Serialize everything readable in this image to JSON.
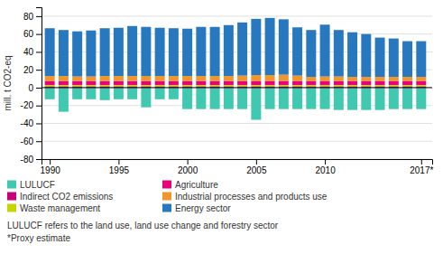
{
  "chart_data": {
    "type": "bar",
    "stacked": true,
    "ylabel": "mill. t CO2-eq",
    "x": [
      1990,
      1991,
      1992,
      1993,
      1994,
      1995,
      1996,
      1997,
      1998,
      1999,
      2000,
      2001,
      2002,
      2003,
      2004,
      2005,
      2006,
      2007,
      2008,
      2009,
      2010,
      2011,
      2012,
      2013,
      2014,
      2015,
      2016,
      2017
    ],
    "xlim": [
      1989.4,
      2017.8
    ],
    "xticks": [
      1990,
      1995,
      2000,
      2005,
      2010,
      {
        "value": 2017,
        "label": "2017*"
      }
    ],
    "ylim": [
      -80,
      90
    ],
    "yticks": [
      -80,
      -60,
      -40,
      -20,
      0,
      20,
      40,
      60,
      80
    ],
    "grid": true,
    "legend": "bottom",
    "series": [
      {
        "name": "LULUCF",
        "color": "#40c8b0",
        "values": [
          -13.0,
          -27.0,
          -13.0,
          -13.0,
          -14.0,
          -13.0,
          -13.0,
          -22.0,
          -13.0,
          -13.0,
          -24.0,
          -24.0,
          -24.0,
          -24.0,
          -24.0,
          -36.0,
          -24.0,
          -24.0,
          -24.0,
          -24.0,
          -24.0,
          -25.0,
          -25.0,
          -25.0,
          -25.0,
          -24.0,
          -24.0,
          -24.0
        ]
      },
      {
        "name": "Indirect CO2 emissions",
        "color": "#c8007a",
        "values": [
          1.5,
          1.5,
          1.5,
          1.5,
          1.5,
          1.5,
          1.5,
          1.5,
          1.5,
          1.5,
          1.5,
          1.5,
          1.5,
          1.5,
          1.5,
          1.5,
          1.5,
          1.5,
          1.5,
          1.5,
          1.5,
          1.5,
          1.5,
          1.5,
          1.5,
          1.5,
          1.5,
          1.5
        ]
      },
      {
        "name": "Waste management",
        "color": "#c8d400",
        "values": [
          1.5,
          1.5,
          1.5,
          1.5,
          1.5,
          1.5,
          1.5,
          1.5,
          1.5,
          1.5,
          1.5,
          1.5,
          1.5,
          1.5,
          1.5,
          1.5,
          1.5,
          1.5,
          1.5,
          1.5,
          1.5,
          1.5,
          1.5,
          1.5,
          1.5,
          1.5,
          1.5,
          1.5
        ]
      },
      {
        "name": "Agriculture",
        "color": "#e8007a",
        "values": [
          4.5,
          4.5,
          4.5,
          4.5,
          4.5,
          4.5,
          4.5,
          4.5,
          4.5,
          4.5,
          4.5,
          4.5,
          4.5,
          4.5,
          4.5,
          4.5,
          4.5,
          4.5,
          4.5,
          4.5,
          4.5,
          4.5,
          4.5,
          4.5,
          4.5,
          4.5,
          4.5,
          4.5
        ]
      },
      {
        "name": "Industrial processes and products use",
        "color": "#f0962a",
        "values": [
          5.5,
          5.5,
          5.0,
          5.0,
          5.5,
          5.5,
          5.5,
          5.5,
          5.5,
          5.5,
          5.5,
          5.5,
          5.5,
          5.5,
          6.0,
          6.5,
          6.5,
          7.0,
          6.0,
          4.5,
          5.0,
          5.0,
          4.5,
          4.5,
          4.5,
          4.5,
          4.5,
          4.5
        ]
      },
      {
        "name": "Energy sector",
        "color": "#2878bf",
        "values": [
          53.5,
          51.5,
          50.5,
          51.5,
          53.5,
          54.0,
          56.0,
          55.0,
          54.0,
          53.5,
          53.0,
          55.0,
          55.0,
          57.0,
          59.5,
          63.0,
          64.0,
          62.0,
          54.0,
          52.5,
          58.0,
          52.0,
          50.0,
          48.0,
          44.0,
          43.0,
          40.0,
          40.0
        ]
      }
    ],
    "annotations": [
      "LULUCF refers to the land use, land use change and forestry sector",
      "*Proxy estimate"
    ]
  }
}
